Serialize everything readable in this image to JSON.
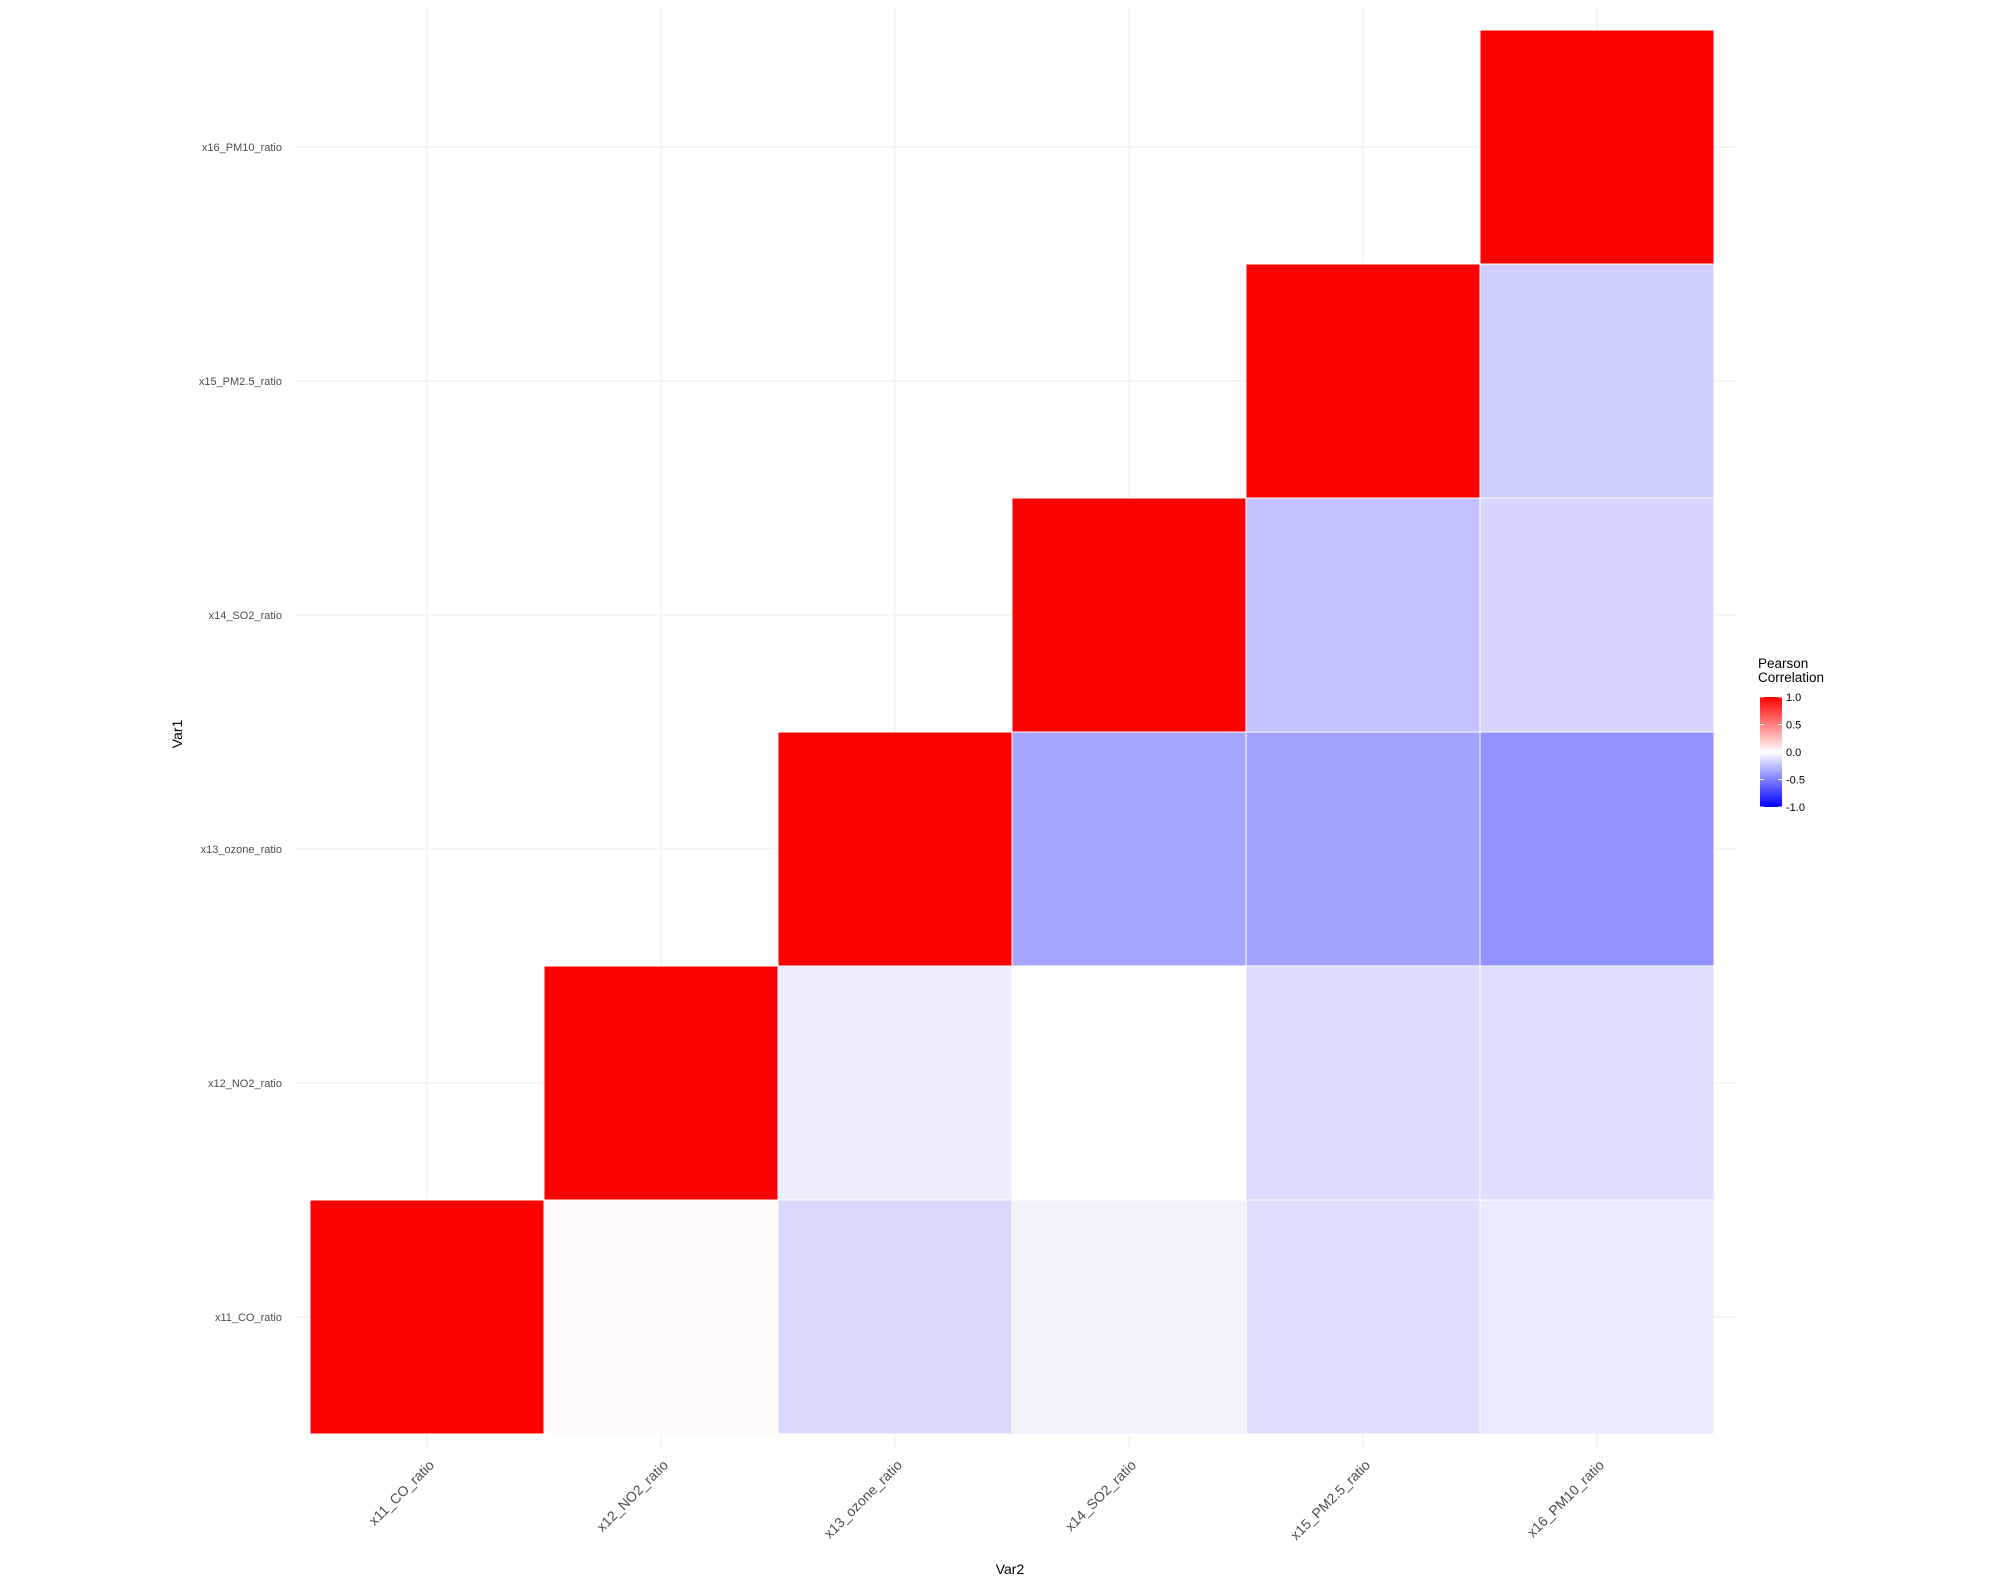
{
  "chart_data": {
    "type": "heatmap",
    "x_categories": [
      "x11_CO_ratio",
      "x12_NO2_ratio",
      "x13_ozone_ratio",
      "x14_SO2_ratio",
      "x15_PM2.5_ratio",
      "x16_PM10_ratio"
    ],
    "y_categories": [
      "x11_CO_ratio",
      "x12_NO2_ratio",
      "x13_ozone_ratio",
      "x14_SO2_ratio",
      "x15_PM2.5_ratio",
      "x16_PM10_ratio"
    ],
    "cells": [
      {
        "x": "x11_CO_ratio",
        "y": "x11_CO_ratio",
        "value": 1.0
      },
      {
        "x": "x12_NO2_ratio",
        "y": "x11_CO_ratio",
        "value": 0.02
      },
      {
        "x": "x13_ozone_ratio",
        "y": "x11_CO_ratio",
        "value": -0.15
      },
      {
        "x": "x14_SO2_ratio",
        "y": "x11_CO_ratio",
        "value": -0.05
      },
      {
        "x": "x15_PM2.5_ratio",
        "y": "x11_CO_ratio",
        "value": -0.13
      },
      {
        "x": "x16_PM10_ratio",
        "y": "x11_CO_ratio",
        "value": -0.08
      },
      {
        "x": "x12_NO2_ratio",
        "y": "x12_NO2_ratio",
        "value": 1.0
      },
      {
        "x": "x13_ozone_ratio",
        "y": "x12_NO2_ratio",
        "value": -0.07
      },
      {
        "x": "x14_SO2_ratio",
        "y": "x12_NO2_ratio",
        "value": 0.0
      },
      {
        "x": "x15_PM2.5_ratio",
        "y": "x12_NO2_ratio",
        "value": -0.14
      },
      {
        "x": "x16_PM10_ratio",
        "y": "x12_NO2_ratio",
        "value": -0.13
      },
      {
        "x": "x13_ozone_ratio",
        "y": "x13_ozone_ratio",
        "value": 1.0
      },
      {
        "x": "x14_SO2_ratio",
        "y": "x13_ozone_ratio",
        "value": -0.35
      },
      {
        "x": "x15_PM2.5_ratio",
        "y": "x13_ozone_ratio",
        "value": -0.36
      },
      {
        "x": "x16_PM10_ratio",
        "y": "x13_ozone_ratio",
        "value": -0.43
      },
      {
        "x": "x14_SO2_ratio",
        "y": "x14_SO2_ratio",
        "value": 1.0
      },
      {
        "x": "x15_PM2.5_ratio",
        "y": "x14_SO2_ratio",
        "value": -0.24
      },
      {
        "x": "x16_PM10_ratio",
        "y": "x14_SO2_ratio",
        "value": -0.16
      },
      {
        "x": "x15_PM2.5_ratio",
        "y": "x15_PM2.5_ratio",
        "value": 1.0
      },
      {
        "x": "x16_PM10_ratio",
        "y": "x15_PM2.5_ratio",
        "value": -0.19
      },
      {
        "x": "x16_PM10_ratio",
        "y": "x16_PM10_ratio",
        "value": 1.0
      }
    ],
    "color_scale": {
      "low": "#0000ff",
      "mid": "#ffffff",
      "high": "#ff0000",
      "limits": [
        -1.0,
        1.0
      ]
    },
    "xlabel": "Var2",
    "ylabel": "Var1",
    "legend": {
      "title_lines": [
        "Pearson",
        "Correlation"
      ],
      "breaks": [
        1.0,
        0.5,
        0.0,
        -0.5,
        -1.0
      ],
      "break_labels": [
        "1.0",
        "0.5",
        "0.0",
        "-0.5",
        "-1.0"
      ],
      "position": "right"
    },
    "grid": true
  }
}
